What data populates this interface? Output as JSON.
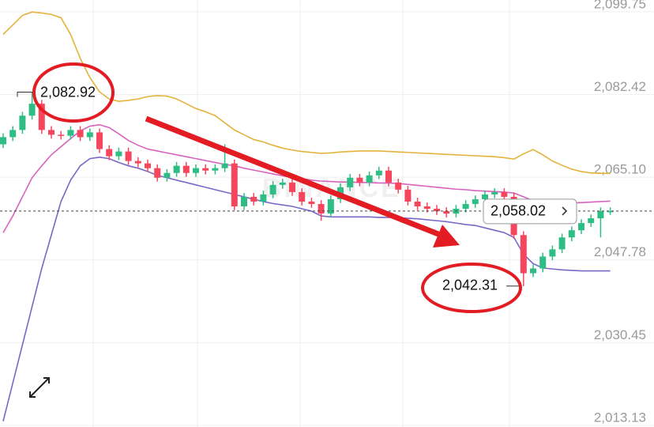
{
  "chart_data": {
    "type": "candlestick",
    "watermark": "BINANCE",
    "ylim": [
      2012.8,
      2102.22
    ],
    "yticks": [
      {
        "value": 2099.75,
        "label": "2,099.75"
      },
      {
        "value": 2082.42,
        "label": "2,082.42"
      },
      {
        "value": 2065.1,
        "label": "2,065.10"
      },
      {
        "value": 2047.78,
        "label": "2,047.78"
      },
      {
        "value": 2030.45,
        "label": "2,030.45"
      },
      {
        "value": 2013.13,
        "label": "2,013.13"
      }
    ],
    "grid": true,
    "up_color": "#2ebd85",
    "down_color": "#f6465d",
    "open": [
      2072.0,
      2073.5,
      2075.0,
      2078.0,
      2080.5,
      2075.0,
      2074.0,
      2073.8,
      2075.0,
      2073.5,
      2074.5,
      2071.0,
      2069.5,
      2070.5,
      2068.5,
      2068.0,
      2067.0,
      2065.0,
      2066.0,
      2067.5,
      2066.0,
      2067.0,
      2066.5,
      2067.0,
      2068.0,
      2059.0,
      2061.0,
      2060.0,
      2061.5,
      2063.5,
      2064.0,
      2062.0,
      2060.0,
      2059.5,
      2057.5,
      2060.5,
      2063.0,
      2065.0,
      2064.0,
      2065.5,
      2066.5,
      2064.0,
      2062.5,
      2060.0,
      2059.0,
      2058.5,
      2058.0,
      2057.5,
      2058.5,
      2059.5,
      2060.5,
      2061.5,
      2062.0,
      2061.0,
      2053.0,
      2045.0,
      2046.0,
      2048.5,
      2050.0,
      2052.5,
      2054.0,
      2055.5,
      2056.5,
      2058.0
    ],
    "high": [
      2074.3,
      2075.8,
      2078.8,
      2082.92,
      2081.3,
      2075.8,
      2074.8,
      2075.8,
      2075.8,
      2075.3,
      2075.3,
      2071.8,
      2071.3,
      2071.3,
      2069.3,
      2068.8,
      2067.8,
      2066.8,
      2068.3,
      2068.3,
      2067.8,
      2067.8,
      2067.8,
      2072.0,
      2068.8,
      2061.8,
      2061.8,
      2062.3,
      2064.3,
      2064.8,
      2064.8,
      2062.8,
      2060.8,
      2060.3,
      2061.3,
      2063.8,
      2065.8,
      2065.8,
      2066.3,
      2067.3,
      2067.3,
      2064.8,
      2063.3,
      2060.8,
      2059.8,
      2059.3,
      2058.8,
      2059.3,
      2060.3,
      2061.3,
      2062.3,
      2062.8,
      2062.8,
      2061.8,
      2053.8,
      2046.8,
      2049.3,
      2050.8,
      2053.3,
      2054.8,
      2056.3,
      2057.3,
      2058.8,
      2058.8
    ],
    "low": [
      2071.2,
      2072.7,
      2074.2,
      2077.2,
      2074.2,
      2073.2,
      2073.0,
      2073.0,
      2072.7,
      2072.7,
      2070.2,
      2068.7,
      2068.7,
      2067.7,
      2067.2,
      2066.2,
      2064.2,
      2064.2,
      2065.2,
      2065.2,
      2065.2,
      2065.7,
      2065.7,
      2066.2,
      2058.2,
      2058.2,
      2059.2,
      2059.2,
      2060.7,
      2062.7,
      2061.2,
      2059.2,
      2058.7,
      2056.0,
      2056.7,
      2059.7,
      2062.2,
      2063.2,
      2063.2,
      2064.7,
      2063.2,
      2061.7,
      2059.2,
      2058.2,
      2057.7,
      2057.2,
      2056.7,
      2056.7,
      2057.7,
      2058.7,
      2059.7,
      2060.7,
      2060.2,
      2052.2,
      2042.31,
      2044.2,
      2045.2,
      2047.7,
      2049.2,
      2051.7,
      2053.2,
      2054.7,
      2052.5,
      2057.2
    ],
    "close": [
      2073.5,
      2075.0,
      2078.0,
      2080.5,
      2075.0,
      2074.0,
      2073.8,
      2075.0,
      2073.5,
      2074.5,
      2071.0,
      2069.5,
      2070.5,
      2068.5,
      2068.0,
      2067.0,
      2065.0,
      2066.0,
      2067.5,
      2066.0,
      2067.0,
      2066.5,
      2067.0,
      2068.0,
      2059.0,
      2061.0,
      2060.0,
      2061.5,
      2063.5,
      2064.0,
      2062.0,
      2060.0,
      2059.5,
      2057.5,
      2060.5,
      2063.0,
      2065.0,
      2064.0,
      2065.5,
      2066.5,
      2064.0,
      2062.5,
      2060.0,
      2059.0,
      2058.5,
      2058.0,
      2057.5,
      2058.5,
      2059.5,
      2060.5,
      2061.5,
      2062.0,
      2061.0,
      2053.0,
      2045.0,
      2046.0,
      2048.5,
      2050.0,
      2052.5,
      2054.0,
      2055.5,
      2056.5,
      2058.0,
      2058.02
    ],
    "series": [
      {
        "color": "#e3b33b",
        "values": [
          2095,
          2097,
          2099,
          2099.7,
          2099.5,
          2099.2,
          2098.5,
          2095,
          2090,
          2086,
          2083,
          2081.5,
          2081,
          2081.2,
          2081.5,
          2082,
          2082.2,
          2082.1,
          2081.5,
          2080.5,
          2079.5,
          2078.8,
          2078,
          2076.5,
          2075,
          2074,
          2073,
          2072.5,
          2071.8,
          2071.2,
          2070.8,
          2070.5,
          2070.3,
          2070.1,
          2070.2,
          2070.4,
          2070.5,
          2070.6,
          2070.6,
          2070.6,
          2070.5,
          2070.4,
          2070.3,
          2070.2,
          2070.1,
          2070,
          2069.9,
          2069.8,
          2069.7,
          2069.6,
          2069.5,
          2069.4,
          2069.2,
          2068.9,
          2070,
          2070.9,
          2069.8,
          2068.5,
          2067.6,
          2066.8,
          2066.3,
          2066,
          2065.9,
          2065.9
        ]
      },
      {
        "color": "#d763bd",
        "values": [
          2053.5,
          2057,
          2061,
          2065,
          2067.5,
          2069.8,
          2071.5,
          2073.2,
          2074.8,
          2075.8,
          2076.1,
          2075.5,
          2074.2,
          2072.8,
          2071.8,
          2071,
          2070.6,
          2070.2,
          2069.8,
          2069.4,
          2069,
          2068.6,
          2068.2,
          2067.8,
          2067.5,
          2067,
          2066.6,
          2066.2,
          2065.8,
          2065.4,
          2065,
          2064.8,
          2064.5,
          2064.3,
          2064.2,
          2064.1,
          2064.1,
          2064,
          2064,
          2063.9,
          2063.9,
          2063.8,
          2063.6,
          2063.4,
          2063.2,
          2063,
          2062.8,
          2062.6,
          2062.5,
          2062.3,
          2062.2,
          2062.1,
          2062,
          2061.8,
          2061,
          2060.2,
          2060,
          2059.8,
          2059.7,
          2059.7,
          2059.8,
          2059.9,
          2060,
          2060.1
        ]
      },
      {
        "color": "#7a67c6",
        "values": [
          2014,
          2022,
          2030,
          2038,
          2046,
          2053,
          2060,
          2064.5,
          2067.5,
          2069,
          2069.3,
          2069,
          2068.2,
          2067.5,
          2067,
          2066.3,
          2065.5,
          2065,
          2064.5,
          2064,
          2063.5,
          2063,
          2062.5,
          2062,
          2061.5,
          2061,
          2060.5,
          2060,
          2059.6,
          2059.3,
          2059,
          2058.5,
          2058,
          2057,
          2056.8,
          2056.8,
          2056.8,
          2056.8,
          2056.8,
          2056.7,
          2056.7,
          2056.6,
          2056.5,
          2056.4,
          2056.2,
          2056,
          2055.8,
          2055.5,
          2055.2,
          2055,
          2054.5,
          2054,
          2053.5,
          2052.5,
          2049,
          2047,
          2046.1,
          2045.9,
          2045.7,
          2045.6,
          2045.5,
          2045.5,
          2045.5,
          2045.5
        ]
      }
    ],
    "current_price": {
      "value": 2058.02,
      "label": "2,058.02"
    },
    "high_label": {
      "value": 2082.92,
      "label": "2,082.92"
    },
    "low_label": {
      "value": 2042.31,
      "label": "2,042.31"
    }
  }
}
